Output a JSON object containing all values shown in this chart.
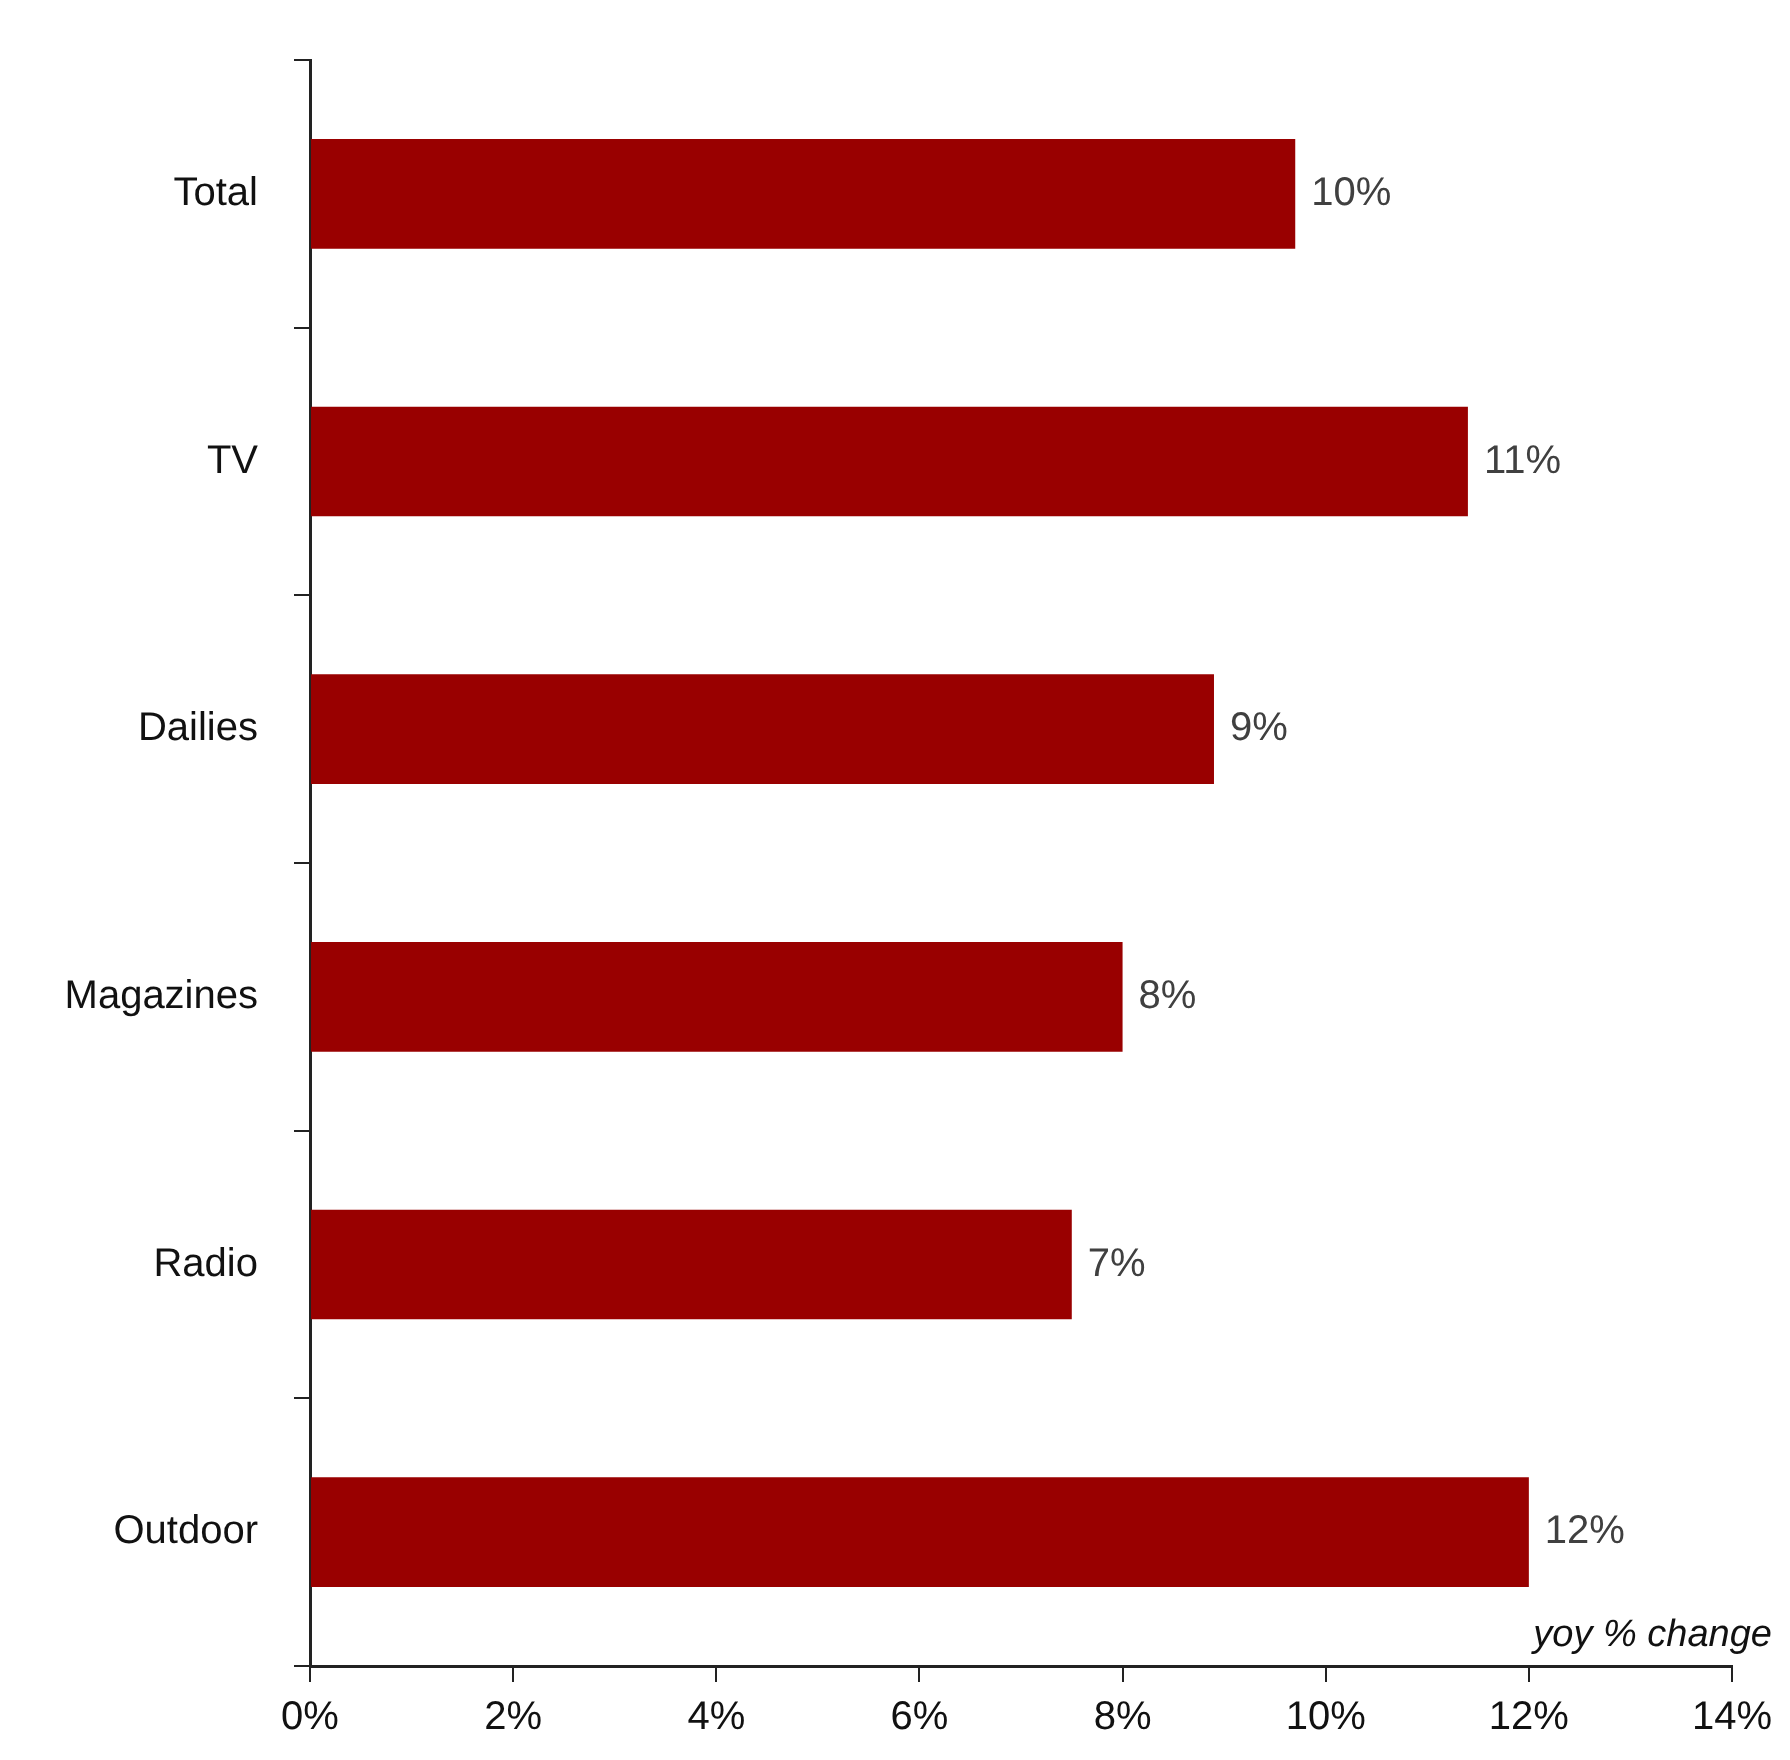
{
  "chart_data": {
    "type": "bar",
    "orientation": "horizontal",
    "xlabel": "yoy % change",
    "categories": [
      "Total",
      "TV",
      "Dailies",
      "Magazines",
      "Radio",
      "Outdoor"
    ],
    "values": [
      9.7,
      11.4,
      8.9,
      8.0,
      7.5,
      12.0
    ],
    "value_labels": [
      "10%",
      "11%",
      "9%",
      "8%",
      "7%",
      "12%"
    ],
    "color": "#990000",
    "xlim": [
      0,
      14
    ],
    "xticks": [
      {
        "value": 0,
        "label": "0%"
      },
      {
        "value": 2,
        "label": "2%"
      },
      {
        "value": 4,
        "label": "4%"
      },
      {
        "value": 6,
        "label": "6%"
      },
      {
        "value": 8,
        "label": "8%"
      },
      {
        "value": 10,
        "label": "10%"
      },
      {
        "value": 12,
        "label": "12%"
      },
      {
        "value": 14,
        "label": "14%"
      }
    ],
    "legend": false
  }
}
